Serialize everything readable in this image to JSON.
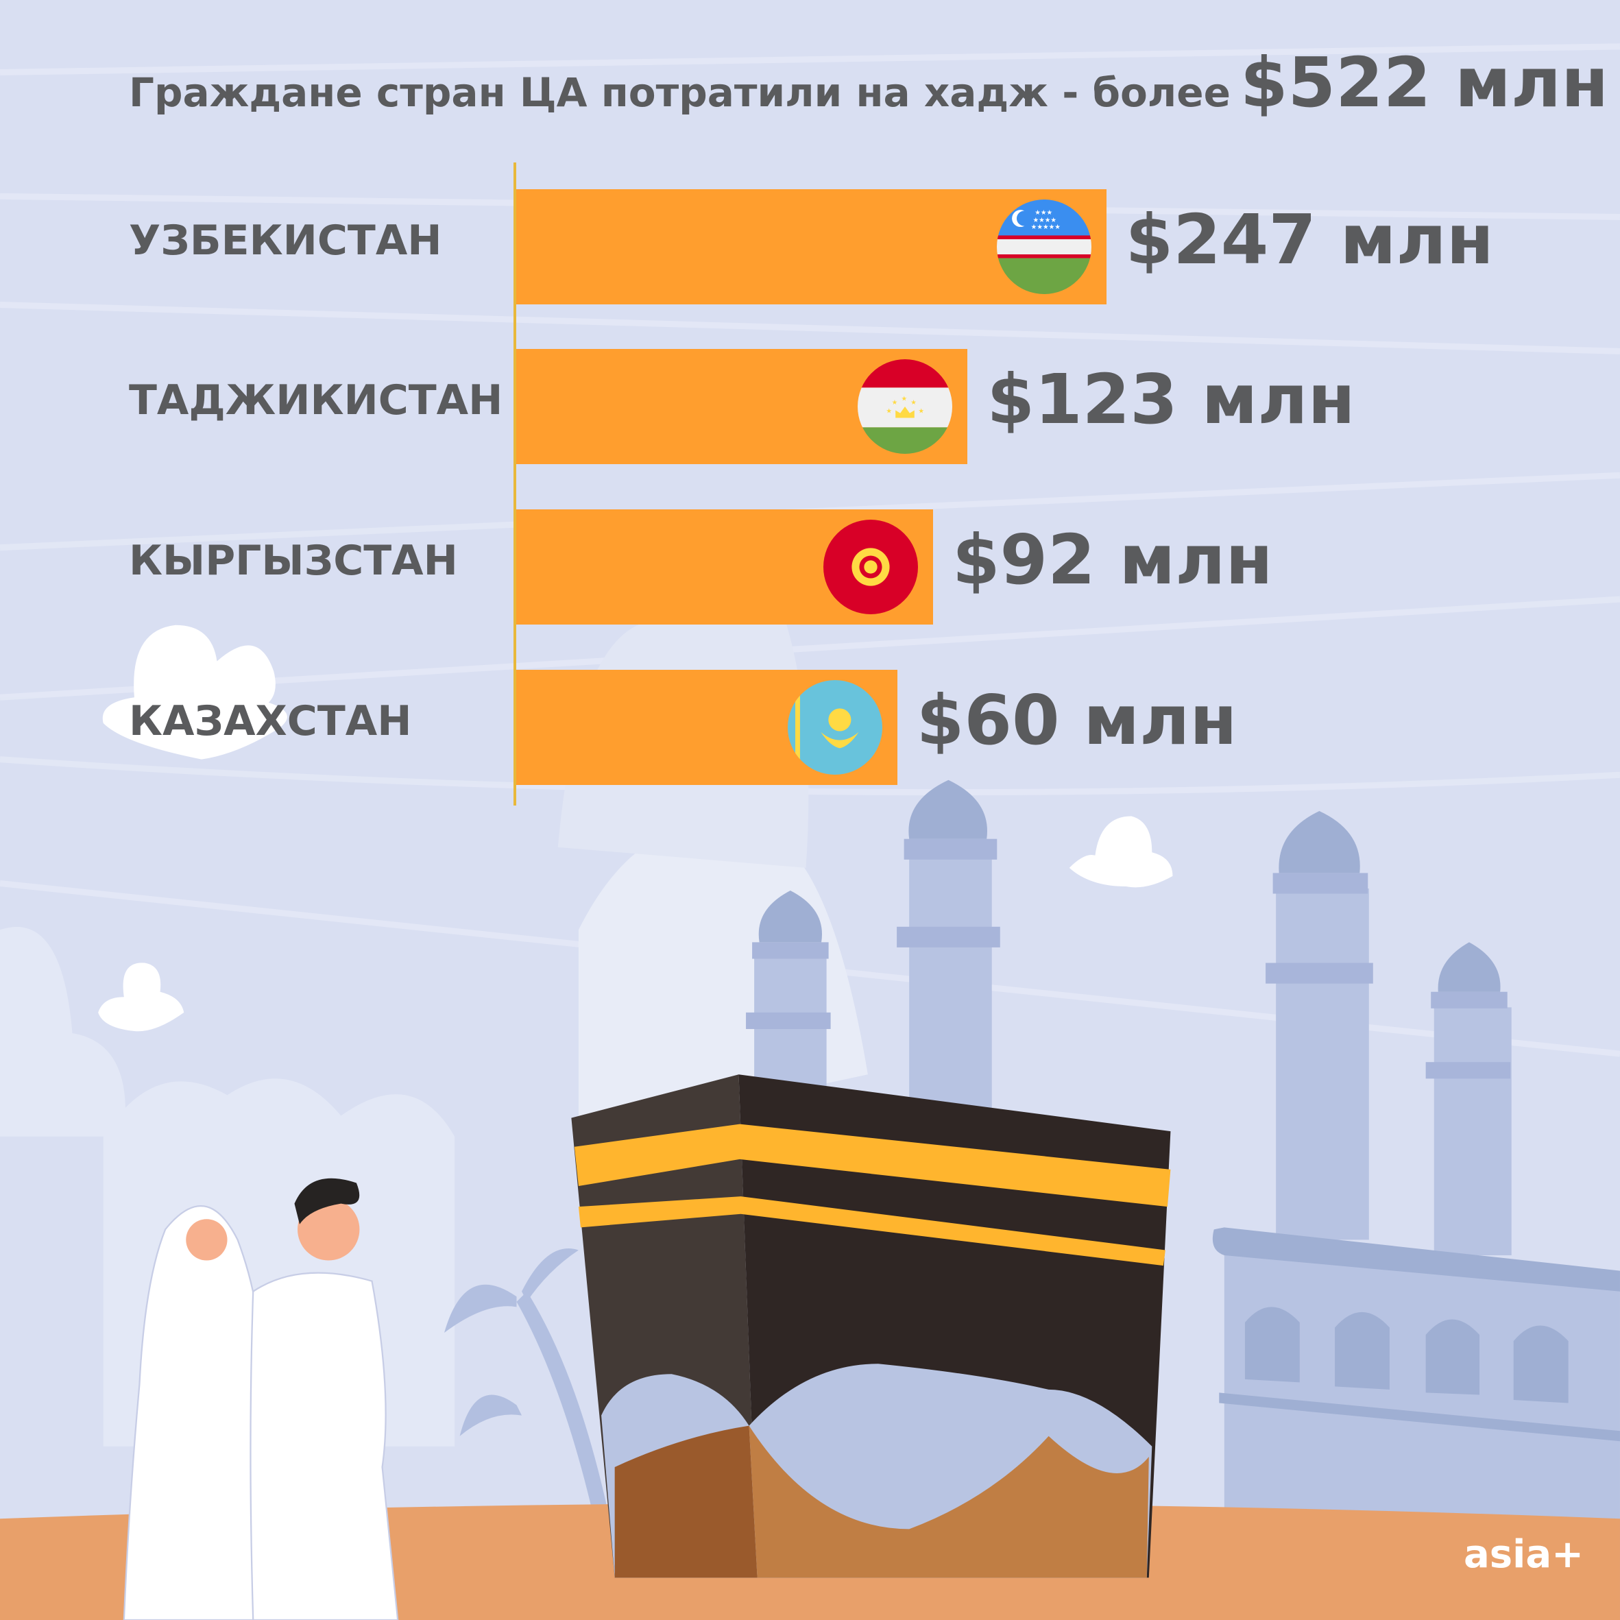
{
  "title": {
    "text": "Граждане стран ЦА потратили на хадж - более",
    "highlight": "$522 млн"
  },
  "chart_data": {
    "type": "bar",
    "orientation": "horizontal",
    "title": "Граждане стран ЦА потратили на хадж - более $522 млн",
    "categories": [
      "УЗБЕКИСТАН",
      "ТАДЖИКИСТАН",
      "КЫРГЫЗСТАН",
      "КАЗАХСТАН"
    ],
    "values": [
      247,
      123,
      92,
      60
    ],
    "unit": "млн USD",
    "data_labels": [
      "$247 млн",
      "$123 млн",
      "$92 млн",
      "$60 млн"
    ],
    "flags": [
      "uzbekistan-flag",
      "tajikistan-flag",
      "kyrgyzstan-flag",
      "kazakhstan-flag"
    ],
    "bar_color": "#ff9e2e",
    "grid": false
  },
  "logo": "asia+",
  "colors": {
    "background": "#d9dff2",
    "text": "#5a5b5d",
    "ground": "#e8a06a"
  }
}
